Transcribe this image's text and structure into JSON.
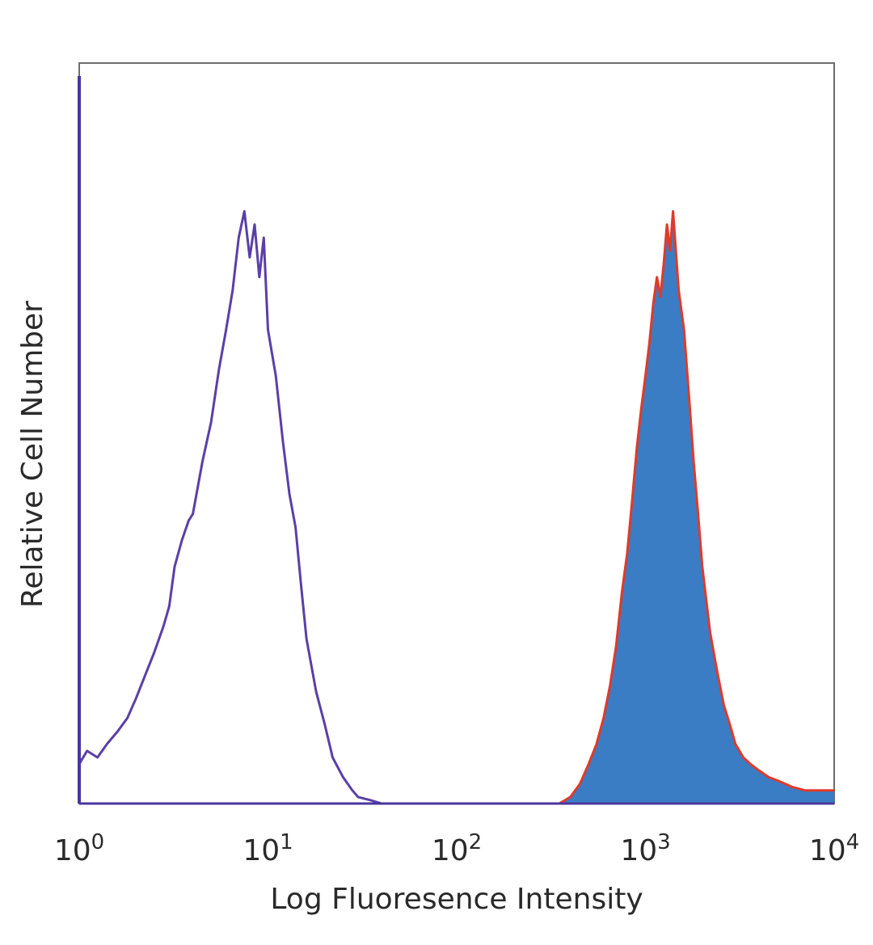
{
  "chart_data": {
    "type": "area",
    "title": "",
    "xlabel": "Log Fluoresence Intensity",
    "ylabel": "Relative Cell Number",
    "x_scale": "log",
    "xlim": [
      1,
      10000
    ],
    "ylim": [
      0,
      1
    ],
    "x_ticks": [
      {
        "value": 1,
        "base": "10",
        "exp": "0"
      },
      {
        "value": 10,
        "base": "10",
        "exp": "1"
      },
      {
        "value": 100,
        "base": "10",
        "exp": "2"
      },
      {
        "value": 1000,
        "base": "10",
        "exp": "3"
      },
      {
        "value": 10000,
        "base": "10",
        "exp": "4"
      }
    ],
    "grid": false,
    "legend": "none",
    "series": [
      {
        "role": "control-outline",
        "color": "#5a3fa8",
        "filled": false,
        "x": [
          1,
          1.1,
          1.25,
          1.4,
          1.6,
          1.8,
          2.0,
          2.2,
          2.5,
          2.8,
          3.0,
          3.2,
          3.5,
          3.8,
          4.0,
          4.5,
          5.0,
          5.5,
          6.0,
          6.5,
          7.0,
          7.5,
          8.0,
          8.5,
          9.0,
          9.5,
          10,
          11,
          12,
          13,
          14,
          15,
          16,
          18,
          20,
          22,
          25,
          28,
          30,
          35,
          40,
          100,
          400
        ],
        "y": [
          0.06,
          0.08,
          0.07,
          0.09,
          0.11,
          0.13,
          0.16,
          0.19,
          0.23,
          0.27,
          0.3,
          0.36,
          0.4,
          0.43,
          0.44,
          0.52,
          0.58,
          0.66,
          0.72,
          0.78,
          0.86,
          0.9,
          0.83,
          0.88,
          0.8,
          0.86,
          0.72,
          0.65,
          0.55,
          0.47,
          0.42,
          0.33,
          0.25,
          0.17,
          0.12,
          0.07,
          0.04,
          0.02,
          0.01,
          0.005,
          0,
          0,
          0
        ]
      },
      {
        "role": "stained-filled",
        "color": "#3a7dc4",
        "outline_color": "#e03a2a",
        "filled": true,
        "x": [
          350,
          400,
          450,
          500,
          550,
          600,
          650,
          700,
          750,
          800,
          850,
          900,
          950,
          1000,
          1050,
          1100,
          1150,
          1200,
          1250,
          1300,
          1350,
          1400,
          1500,
          1600,
          1700,
          1800,
          1900,
          2000,
          2200,
          2400,
          2600,
          2800,
          3000,
          3300,
          3600,
          4000,
          4500,
          5000,
          5500,
          6000,
          7000,
          8000,
          9000,
          10000
        ],
        "y": [
          0,
          0.01,
          0.03,
          0.06,
          0.09,
          0.13,
          0.18,
          0.24,
          0.32,
          0.38,
          0.46,
          0.54,
          0.6,
          0.65,
          0.7,
          0.76,
          0.8,
          0.77,
          0.82,
          0.88,
          0.84,
          0.9,
          0.78,
          0.72,
          0.62,
          0.52,
          0.44,
          0.36,
          0.26,
          0.2,
          0.15,
          0.12,
          0.09,
          0.07,
          0.06,
          0.05,
          0.04,
          0.035,
          0.03,
          0.025,
          0.02,
          0.02,
          0.02,
          0.02
        ]
      }
    ]
  }
}
